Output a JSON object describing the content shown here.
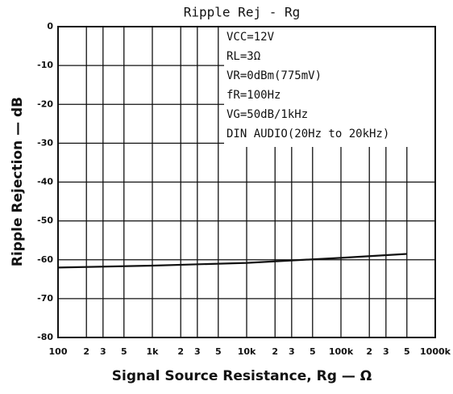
{
  "chart_data": {
    "type": "line",
    "title": "Ripple Rej - Rg",
    "xlabel": "Signal Source Resistance, Rg —  Ω",
    "ylabel": "Ripple Rejection — dB",
    "xscale": "log",
    "grid": true,
    "xlim": [
      100,
      1000000
    ],
    "ylim": [
      -80,
      0
    ],
    "yticks": [
      0,
      -10,
      -20,
      -30,
      -40,
      -50,
      -60,
      -70,
      -80
    ],
    "xticks": [
      100,
      {
        "value": 200,
        "label": "2"
      },
      {
        "value": 300,
        "label": "3"
      },
      {
        "value": 500,
        "label": "5"
      },
      {
        "value": 1000,
        "label": "1k"
      },
      {
        "value": 2000,
        "label": "2"
      },
      {
        "value": 3000,
        "label": "3"
      },
      {
        "value": 5000,
        "label": "5"
      },
      {
        "value": 10000,
        "label": "10k"
      },
      {
        "value": 20000,
        "label": "2"
      },
      {
        "value": 30000,
        "label": "3"
      },
      {
        "value": 50000,
        "label": "5"
      },
      {
        "value": 100000,
        "label": "100k"
      },
      {
        "value": 200000,
        "label": "2"
      },
      {
        "value": 300000,
        "label": "3"
      },
      {
        "value": 500000,
        "label": "5"
      },
      {
        "value": 1000000,
        "label": "1000k"
      }
    ],
    "annotations": [
      "VCC=12V",
      "RL=3Ω",
      "VR=0dBm(775mV)",
      "fR=100Hz",
      "VG=50dB/1kHz",
      "DIN AUDIO(20Hz to 20kHz)"
    ],
    "series": [
      {
        "name": "Ripple Rejection",
        "color": "#111111",
        "x": [
          100,
          1000,
          10000,
          100000,
          500000
        ],
        "values": [
          -62,
          -61.5,
          -60.8,
          -59.5,
          -58.5
        ]
      }
    ]
  }
}
